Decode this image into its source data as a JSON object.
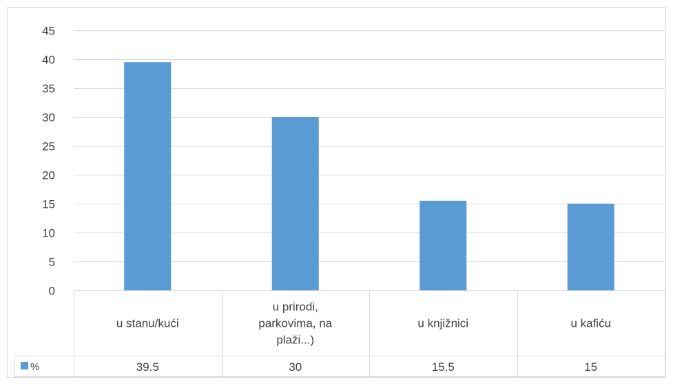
{
  "chart_data": {
    "type": "bar",
    "categories": [
      [
        "u stanu/kući"
      ],
      [
        "u prirodi,",
        "parkovima, na",
        "plaži...)"
      ],
      [
        "u knjižnici"
      ],
      [
        "u kafiću"
      ]
    ],
    "series": [
      {
        "name": "%",
        "values": [
          39.5,
          30,
          15.5,
          15
        ],
        "value_labels": [
          "39.5",
          "30",
          "15.5",
          "15"
        ]
      }
    ],
    "yticks": [
      "0",
      "5",
      "10",
      "15",
      "20",
      "25",
      "30",
      "35",
      "40",
      "45"
    ],
    "ylim": [
      0,
      45
    ],
    "grid": true,
    "legend": "data-table-left",
    "colors": {
      "bar": "#5b9bd5",
      "grid": "#d9d9d9",
      "text": "#404040",
      "border": "#d9d9d9"
    }
  }
}
